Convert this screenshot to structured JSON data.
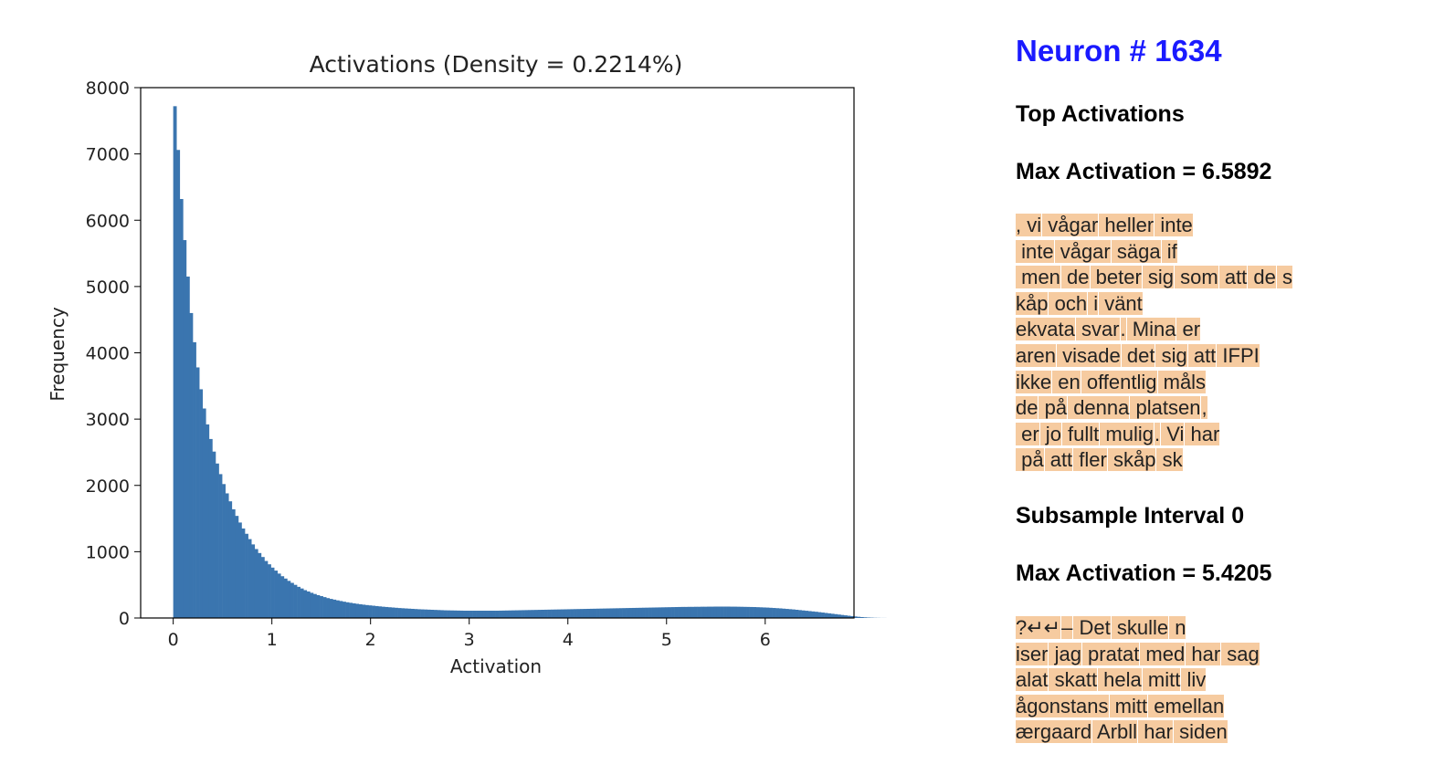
{
  "chart_data": {
    "type": "bar",
    "title": "Activations (Density = 0.2214%)",
    "xlabel": "Activation",
    "ylabel": "Frequency",
    "xlim": [
      -0.33,
      6.9
    ],
    "ylim": [
      0,
      8000
    ],
    "xticks": [
      "0",
      "1",
      "2",
      "3",
      "4",
      "5",
      "6"
    ],
    "yticks": [
      "0",
      "1000",
      "2000",
      "3000",
      "4000",
      "5000",
      "6000",
      "7000",
      "8000"
    ],
    "bar_color": "#3a75af",
    "bin_start": 0.0,
    "bin_width": 0.033,
    "values": [
      7720,
      7060,
      6320,
      5700,
      5150,
      4600,
      4160,
      3780,
      3450,
      3160,
      2920,
      2700,
      2510,
      2330,
      2170,
      2020,
      1880,
      1760,
      1640,
      1540,
      1440,
      1350,
      1270,
      1190,
      1110,
      1040,
      980,
      920,
      860,
      810,
      760,
      715,
      670,
      630,
      595,
      560,
      530,
      500,
      470,
      445,
      420,
      400,
      380,
      362,
      345,
      330,
      315,
      300,
      288,
      277,
      266,
      256,
      246,
      237,
      229,
      221,
      214,
      207,
      201,
      195,
      190,
      185,
      180,
      175,
      170,
      166,
      162,
      158,
      154,
      150,
      147,
      144,
      141,
      138,
      135,
      132,
      130,
      128,
      126,
      124,
      122,
      120,
      118,
      116,
      115,
      114,
      113,
      112,
      111,
      110,
      110,
      110,
      110,
      110,
      110,
      110,
      110,
      110,
      110,
      110,
      111,
      112,
      113,
      114,
      115,
      116,
      117,
      118,
      119,
      120,
      121,
      122,
      123,
      124,
      125,
      126,
      127,
      128,
      129,
      130,
      131,
      132,
      133,
      134,
      135,
      136,
      137,
      138,
      139,
      140,
      141,
      142,
      143,
      144,
      145,
      146,
      147,
      148,
      149,
      150,
      151,
      152,
      153,
      154,
      155,
      156,
      157,
      158,
      159,
      160,
      161,
      162,
      163,
      164,
      165,
      166,
      167,
      167,
      168,
      168,
      169,
      169,
      170,
      170,
      171,
      171,
      172,
      172,
      172,
      172,
      172,
      171,
      171,
      170,
      169,
      168,
      167,
      166,
      165,
      163,
      161,
      159,
      157,
      154,
      151,
      148,
      145,
      141,
      137,
      133,
      129,
      124,
      119,
      114,
      109,
      104,
      99,
      94,
      88,
      82,
      76,
      70,
      64,
      58,
      52,
      46,
      40,
      34,
      28,
      23,
      18,
      14,
      10,
      7,
      5,
      3,
      2,
      1,
      1
    ]
  },
  "panel": {
    "neuron_title": "Neuron # 1634",
    "top_heading": "Top Activations",
    "max_heading_1": "Max Activation = 6.5892",
    "snippets_1": [
      [
        ", vi",
        " vågar",
        " heller",
        " inte"
      ],
      [
        " inte",
        " vågar",
        " säga",
        " if"
      ],
      [
        " men",
        " de",
        " beter",
        " sig",
        " som",
        " att",
        " de",
        " s"
      ],
      [
        "kåp",
        " och",
        " i",
        " vänt"
      ],
      [
        "ekvata",
        " svar",
        ".",
        " Mina",
        " er"
      ],
      [
        "aren",
        " visade",
        " det",
        " sig",
        " att",
        " IFPI"
      ],
      [
        "ikke",
        " en",
        " offentlig",
        " måls"
      ],
      [
        "de",
        " på",
        " denna",
        " platsen",
        ","
      ],
      [
        " er",
        " jo",
        " fullt",
        " mulig",
        ".",
        " Vi",
        " har"
      ],
      [
        " på",
        " att",
        " fler",
        " skåp",
        " sk"
      ]
    ],
    "subsample_heading": "Subsample Interval 0",
    "max_heading_2": "Max Activation = 5.4205",
    "snippets_2": [
      [
        "?↵↵",
        "–",
        " Det",
        " skulle",
        " n"
      ],
      [
        "iser",
        " jag",
        " pratat",
        " med",
        " har",
        " sag"
      ],
      [
        "alat",
        " skatt",
        " hela",
        " mitt",
        " liv"
      ],
      [
        "ågonstans",
        " mitt",
        " emellan"
      ],
      [
        "ærgaard",
        " Arbll",
        " har",
        " siden"
      ]
    ]
  }
}
